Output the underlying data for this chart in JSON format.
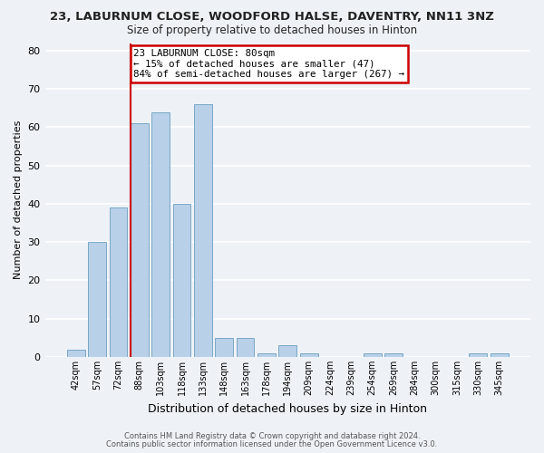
{
  "title": "23, LABURNUM CLOSE, WOODFORD HALSE, DAVENTRY, NN11 3NZ",
  "subtitle": "Size of property relative to detached houses in Hinton",
  "xlabel": "Distribution of detached houses by size in Hinton",
  "ylabel": "Number of detached properties",
  "bar_labels": [
    "42sqm",
    "57sqm",
    "72sqm",
    "88sqm",
    "103sqm",
    "118sqm",
    "133sqm",
    "148sqm",
    "163sqm",
    "178sqm",
    "194sqm",
    "209sqm",
    "224sqm",
    "239sqm",
    "254sqm",
    "269sqm",
    "284sqm",
    "300sqm",
    "315sqm",
    "330sqm",
    "345sqm"
  ],
  "bar_values": [
    2,
    30,
    39,
    61,
    64,
    40,
    66,
    5,
    5,
    1,
    3,
    1,
    0,
    0,
    1,
    1,
    0,
    0,
    0,
    1,
    1
  ],
  "bar_color": "#b8d0e8",
  "bar_edge_color": "#6a9fc0",
  "vline_color": "#cc0000",
  "annotation_text": "23 LABURNUM CLOSE: 80sqm\n← 15% of detached houses are smaller (47)\n84% of semi-detached houses are larger (267) →",
  "annotation_box_color": "white",
  "annotation_box_edge": "#cc0000",
  "ylim": [
    0,
    82
  ],
  "yticks": [
    0,
    10,
    20,
    30,
    40,
    50,
    60,
    70,
    80
  ],
  "background_color": "#eef2f7",
  "grid_color": "#ffffff",
  "footer_line1": "Contains HM Land Registry data © Crown copyright and database right 2024.",
  "footer_line2": "Contains public sector information licensed under the Open Government Licence v3.0."
}
